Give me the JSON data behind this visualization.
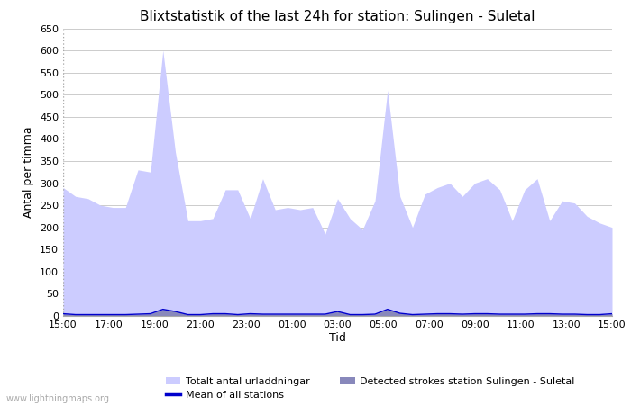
{
  "title": "Blixtstatistik of the last 24h for station: Sulingen - Suletal",
  "ylabel": "Antal per timma",
  "xlabel": "Tid",
  "xlabels": [
    "15:00",
    "17:00",
    "19:00",
    "21:00",
    "23:00",
    "01:00",
    "03:00",
    "05:00",
    "07:00",
    "09:00",
    "11:00",
    "13:00",
    "15:00"
  ],
  "ylim": [
    0,
    650
  ],
  "yticks": [
    0,
    50,
    100,
    150,
    200,
    250,
    300,
    350,
    400,
    450,
    500,
    550,
    600,
    650
  ],
  "background_color": "#ffffff",
  "plot_bg_color": "#ffffff",
  "grid_color": "#cccccc",
  "watermark": "www.lightningmaps.org",
  "legend": {
    "totalt": "Totalt antal urladdningar",
    "mean": "Mean of all stations",
    "detected": "Detected strokes station Sulingen - Suletal"
  },
  "totalt_color": "#ccccff",
  "detected_color": "#8888bb",
  "mean_color": "#0000cc",
  "totalt_values": [
    290,
    270,
    265,
    250,
    245,
    245,
    330,
    325,
    600,
    370,
    215,
    215,
    220,
    285,
    285,
    220,
    310,
    240,
    245,
    240,
    245,
    185,
    265,
    220,
    195,
    260,
    510,
    270,
    200,
    275,
    290,
    300,
    270,
    300,
    310,
    285,
    215,
    285,
    310,
    215,
    260,
    255,
    225,
    210,
    200
  ],
  "detected_values": [
    5,
    3,
    3,
    3,
    3,
    3,
    4,
    5,
    15,
    10,
    3,
    3,
    5,
    5,
    3,
    5,
    4,
    4,
    4,
    4,
    4,
    4,
    10,
    3,
    3,
    4,
    15,
    6,
    3,
    4,
    5,
    5,
    4,
    5,
    5,
    4,
    4,
    4,
    5,
    5,
    4,
    4,
    3,
    3,
    5
  ],
  "mean_values": [
    5,
    3,
    3,
    3,
    3,
    3,
    4,
    5,
    15,
    10,
    3,
    3,
    5,
    5,
    3,
    5,
    4,
    4,
    4,
    4,
    4,
    4,
    10,
    3,
    3,
    4,
    15,
    6,
    3,
    4,
    5,
    5,
    4,
    5,
    5,
    4,
    4,
    4,
    5,
    5,
    4,
    4,
    3,
    3,
    5
  ],
  "n_points": 45
}
